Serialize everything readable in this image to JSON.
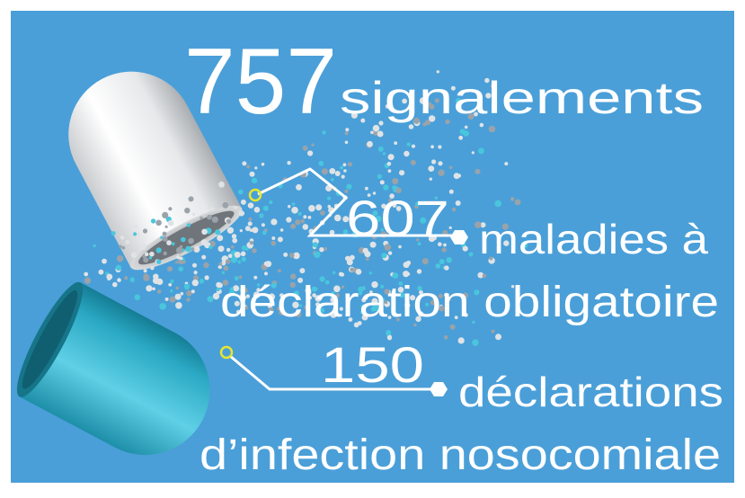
{
  "headline": {
    "number": "757",
    "label": "signalements"
  },
  "items": [
    {
      "number": "607",
      "lines": [
        "maladies à",
        "déclaration obligatoire"
      ]
    },
    {
      "number": "150",
      "lines": [
        "déclarations",
        "d’infection nosocomiale"
      ]
    }
  ]
}
